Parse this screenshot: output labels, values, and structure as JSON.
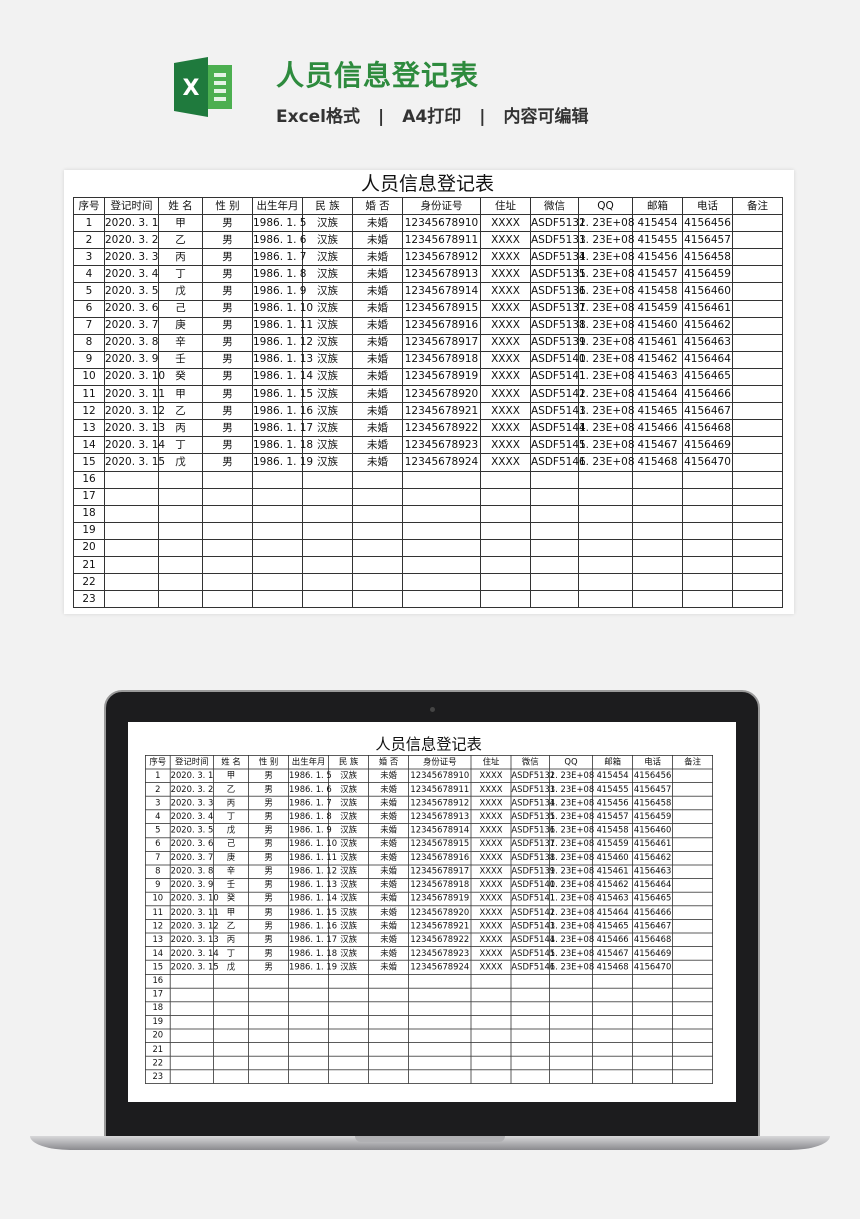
{
  "header": {
    "title": "人员信息登记表",
    "tags": [
      "Excel格式",
      "A4打印",
      "内容可编辑"
    ],
    "separator": "|",
    "logo_letter": "X"
  },
  "colors": {
    "brand": "#2e8b3e",
    "excel_green": "#1f7a3d"
  },
  "sheet": {
    "title": "人员信息登记表",
    "columns": [
      "序号",
      "登记时间",
      "姓 名",
      "性 别",
      "出生年月",
      "民 族",
      "婚 否",
      "身份证号",
      "住址",
      "微信",
      "QQ",
      "邮箱",
      "电话",
      "备注"
    ],
    "rows": [
      [
        "1",
        "2020. 3. 1",
        "甲",
        "男",
        "1986. 1. 5",
        "汉族",
        "未婚",
        "12345678910",
        "XXXX",
        "ASDF5132",
        "1. 23E+08",
        "415454",
        "4156456",
        ""
      ],
      [
        "2",
        "2020. 3. 2",
        "乙",
        "男",
        "1986. 1. 6",
        "汉族",
        "未婚",
        "12345678911",
        "XXXX",
        "ASDF5133",
        "1. 23E+08",
        "415455",
        "4156457",
        ""
      ],
      [
        "3",
        "2020. 3. 3",
        "丙",
        "男",
        "1986. 1. 7",
        "汉族",
        "未婚",
        "12345678912",
        "XXXX",
        "ASDF5134",
        "1. 23E+08",
        "415456",
        "4156458",
        ""
      ],
      [
        "4",
        "2020. 3. 4",
        "丁",
        "男",
        "1986. 1. 8",
        "汉族",
        "未婚",
        "12345678913",
        "XXXX",
        "ASDF5135",
        "1. 23E+08",
        "415457",
        "4156459",
        ""
      ],
      [
        "5",
        "2020. 3. 5",
        "戊",
        "男",
        "1986. 1. 9",
        "汉族",
        "未婚",
        "12345678914",
        "XXXX",
        "ASDF5136",
        "1. 23E+08",
        "415458",
        "4156460",
        ""
      ],
      [
        "6",
        "2020. 3. 6",
        "己",
        "男",
        "1986. 1. 10",
        "汉族",
        "未婚",
        "12345678915",
        "XXXX",
        "ASDF5137",
        "1. 23E+08",
        "415459",
        "4156461",
        ""
      ],
      [
        "7",
        "2020. 3. 7",
        "庚",
        "男",
        "1986. 1. 11",
        "汉族",
        "未婚",
        "12345678916",
        "XXXX",
        "ASDF5138",
        "1. 23E+08",
        "415460",
        "4156462",
        ""
      ],
      [
        "8",
        "2020. 3. 8",
        "辛",
        "男",
        "1986. 1. 12",
        "汉族",
        "未婚",
        "12345678917",
        "XXXX",
        "ASDF5139",
        "1. 23E+08",
        "415461",
        "4156463",
        ""
      ],
      [
        "9",
        "2020. 3. 9",
        "壬",
        "男",
        "1986. 1. 13",
        "汉族",
        "未婚",
        "12345678918",
        "XXXX",
        "ASDF5140",
        "1. 23E+08",
        "415462",
        "4156464",
        ""
      ],
      [
        "10",
        "2020. 3. 10",
        "癸",
        "男",
        "1986. 1. 14",
        "汉族",
        "未婚",
        "12345678919",
        "XXXX",
        "ASDF5141",
        "1. 23E+08",
        "415463",
        "4156465",
        ""
      ],
      [
        "11",
        "2020. 3. 11",
        "甲",
        "男",
        "1986. 1. 15",
        "汉族",
        "未婚",
        "12345678920",
        "XXXX",
        "ASDF5142",
        "1. 23E+08",
        "415464",
        "4156466",
        ""
      ],
      [
        "12",
        "2020. 3. 12",
        "乙",
        "男",
        "1986. 1. 16",
        "汉族",
        "未婚",
        "12345678921",
        "XXXX",
        "ASDF5143",
        "1. 23E+08",
        "415465",
        "4156467",
        ""
      ],
      [
        "13",
        "2020. 3. 13",
        "丙",
        "男",
        "1986. 1. 17",
        "汉族",
        "未婚",
        "12345678922",
        "XXXX",
        "ASDF5144",
        "1. 23E+08",
        "415466",
        "4156468",
        ""
      ],
      [
        "14",
        "2020. 3. 14",
        "丁",
        "男",
        "1986. 1. 18",
        "汉族",
        "未婚",
        "12345678923",
        "XXXX",
        "ASDF5145",
        "1. 23E+08",
        "415467",
        "4156469",
        ""
      ],
      [
        "15",
        "2020. 3. 15",
        "戊",
        "男",
        "1986. 1. 19",
        "汉族",
        "未婚",
        "12345678924",
        "XXXX",
        "ASDF5146",
        "1. 23E+08",
        "415468",
        "4156470",
        ""
      ],
      [
        "16",
        "",
        "",
        "",
        "",
        "",
        "",
        "",
        "",
        "",
        "",
        "",
        "",
        ""
      ],
      [
        "17",
        "",
        "",
        "",
        "",
        "",
        "",
        "",
        "",
        "",
        "",
        "",
        "",
        ""
      ],
      [
        "18",
        "",
        "",
        "",
        "",
        "",
        "",
        "",
        "",
        "",
        "",
        "",
        "",
        ""
      ],
      [
        "19",
        "",
        "",
        "",
        "",
        "",
        "",
        "",
        "",
        "",
        "",
        "",
        "",
        ""
      ],
      [
        "20",
        "",
        "",
        "",
        "",
        "",
        "",
        "",
        "",
        "",
        "",
        "",
        "",
        ""
      ],
      [
        "21",
        "",
        "",
        "",
        "",
        "",
        "",
        "",
        "",
        "",
        "",
        "",
        "",
        ""
      ],
      [
        "22",
        "",
        "",
        "",
        "",
        "",
        "",
        "",
        "",
        "",
        "",
        "",
        "",
        ""
      ],
      [
        "23",
        "",
        "",
        "",
        "",
        "",
        "",
        "",
        "",
        "",
        "",
        "",
        "",
        ""
      ]
    ]
  }
}
